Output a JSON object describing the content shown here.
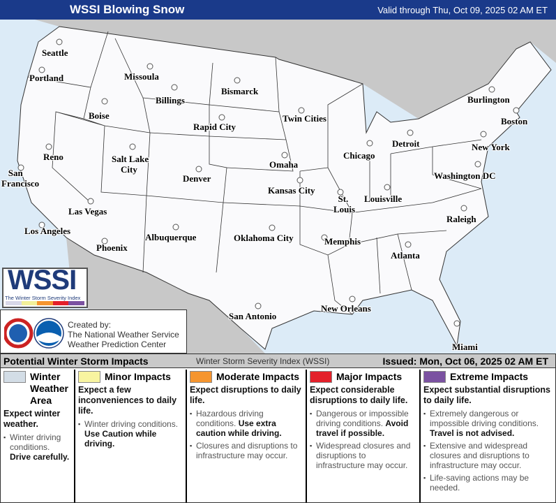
{
  "header": {
    "title": "WSSI Blowing Snow",
    "valid": "Valid through Thu, Oct 09, 2025 02 AM ET"
  },
  "colors": {
    "header": "#1a3a8a",
    "land": "#ffffff",
    "ocean": "#dcebf7",
    "foreign": "#c8c8c8",
    "winter": "#d3dde6",
    "minor": "#f8f4a0",
    "moderate": "#f5952f",
    "major": "#e3202a",
    "extreme": "#7b52a1"
  },
  "cities": [
    {
      "name": "Seattle",
      "dot": true
    },
    {
      "name": "Portland"
    },
    {
      "name": "Missoula"
    },
    {
      "name": "Boise"
    },
    {
      "name": "Billings"
    },
    {
      "name": "Bismarck"
    },
    {
      "name": "Rapid City"
    },
    {
      "name": "Twin Cities"
    },
    {
      "name": "Burlington"
    },
    {
      "name": "Boston"
    },
    {
      "name": "Reno"
    },
    {
      "name": "Salt Lake City"
    },
    {
      "name": "Denver"
    },
    {
      "name": "Omaha"
    },
    {
      "name": "Chicago"
    },
    {
      "name": "Detroit"
    },
    {
      "name": "New York"
    },
    {
      "name": "San Francisco"
    },
    {
      "name": "Kansas City"
    },
    {
      "name": "St. Louis"
    },
    {
      "name": "Louisville"
    },
    {
      "name": "Washington DC"
    },
    {
      "name": "Las Vegas"
    },
    {
      "name": "Los Angeles"
    },
    {
      "name": "Albuquerque"
    },
    {
      "name": "Oklahoma City"
    },
    {
      "name": "Memphis"
    },
    {
      "name": "Raleigh"
    },
    {
      "name": "Atlanta"
    },
    {
      "name": "Phoenix"
    },
    {
      "name": "San Antonio"
    },
    {
      "name": "New Orleans"
    },
    {
      "name": "Miami"
    }
  ],
  "logo": {
    "title": "WSSI",
    "subtitle": "The Winter Storm Severity Index"
  },
  "credit": {
    "line1": "Created by:",
    "line2": "The National Weather Service",
    "line3": "Weather Prediction Center"
  },
  "legend": {
    "title": "Potential Winter Storm Impacts",
    "index": "Winter Storm Severity Index (WSSI)",
    "issued": "Issued: Mon, Oct 06, 2025 02 AM ET",
    "categories": [
      {
        "title": "Winter Weather Area",
        "desc": "Expect winter weather.",
        "bullets": [
          {
            "text": "Winter driving conditions. ",
            "bold": "Drive carefully."
          }
        ]
      },
      {
        "title": "Minor Impacts",
        "desc": "Expect a few inconveniences to daily life.",
        "bullets": [
          {
            "text": "Winter driving conditions. ",
            "bold": "Use Caution while driving."
          }
        ]
      },
      {
        "title": "Moderate Impacts",
        "desc": "Expect disruptions to daily life.",
        "bullets": [
          {
            "text": "Hazardous driving conditions. ",
            "bold": "Use extra caution while driving."
          },
          {
            "text": "Closures and disruptions to infrastructure may occur.",
            "bold": ""
          }
        ]
      },
      {
        "title": "Major Impacts",
        "desc": "Expect considerable disruptions to daily life.",
        "bullets": [
          {
            "text": "Dangerous or impossible driving conditions. ",
            "bold": "Avoid travel if possible."
          },
          {
            "text": "Widespread closures and disruptions to infrastructure may occur.",
            "bold": ""
          }
        ]
      },
      {
        "title": "Extreme Impacts",
        "desc": "Expect substantial disruptions to daily life.",
        "bullets": [
          {
            "text": "Extremely dangerous or impossible driving conditions. ",
            "bold": "Travel is not advised."
          },
          {
            "text": "Extensive and widespread closures and disruptions to infrastructure may occur.",
            "bold": ""
          },
          {
            "text": "Life-saving actions may be needed.",
            "bold": ""
          }
        ]
      }
    ]
  }
}
